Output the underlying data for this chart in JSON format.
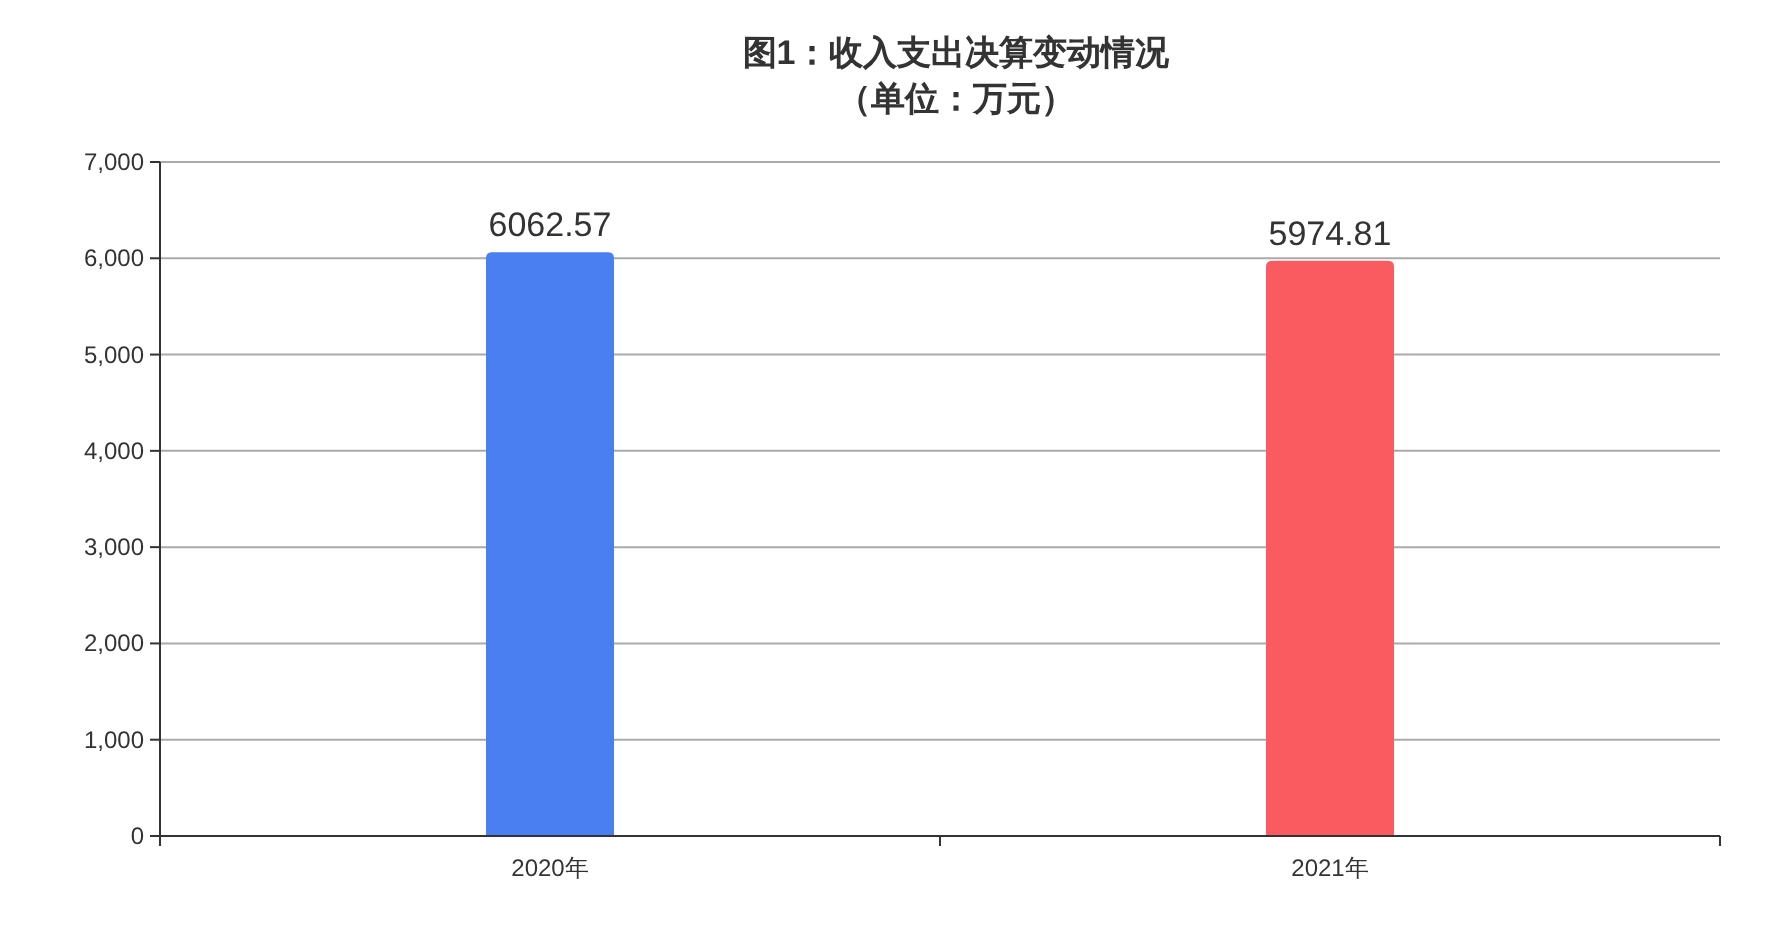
{
  "chart_data": {
    "type": "bar",
    "title": "图1：收入支出决算变动情况",
    "subtitle": "（单位：万元）",
    "categories": [
      "2020年",
      "2021年"
    ],
    "values": [
      6062.57,
      5974.81
    ],
    "colors": [
      "#4a7ff2",
      "#fa5b60"
    ],
    "ylim": [
      0,
      7000
    ],
    "yticks": [
      {
        "value": 0,
        "label": "0"
      },
      {
        "value": 1000,
        "label": "1,000"
      },
      {
        "value": 2000,
        "label": "2,000"
      },
      {
        "value": 3000,
        "label": "3,000"
      },
      {
        "value": 4000,
        "label": "4,000"
      },
      {
        "value": 5000,
        "label": "5,000"
      },
      {
        "value": 6000,
        "label": "6,000"
      },
      {
        "value": 7000,
        "label": "7,000"
      }
    ],
    "grid": "y",
    "data_labels": true
  }
}
